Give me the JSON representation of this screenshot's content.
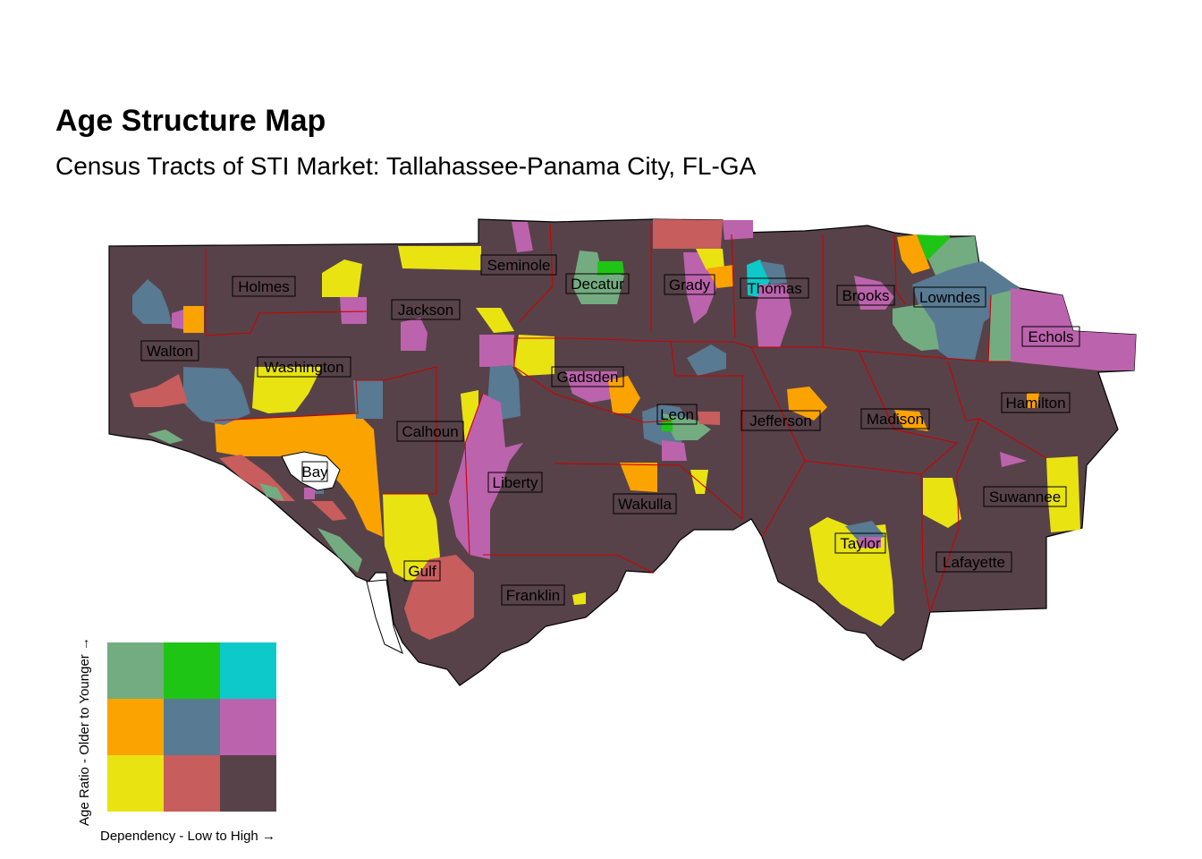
{
  "title": "Age Structure Map",
  "subtitle": "Census Tracts of STI Market: Tallahassee-Panama City, FL-GA",
  "colors": {
    "base": "#574249",
    "border_county": "#cc0000",
    "outline": "#000000"
  },
  "counties": [
    "Holmes",
    "Seminole",
    "Decatur",
    "Grady",
    "Thomas",
    "Brooks",
    "Lowndes",
    "Jackson",
    "Echols",
    "Walton",
    "Washington",
    "Gadsden",
    "Hamilton",
    "Leon",
    "Calhoun",
    "Jefferson",
    "Madison",
    "Bay",
    "Liberty",
    "Suwannee",
    "Wakulla",
    "Taylor",
    "Gulf",
    "Lafayette",
    "Franklin"
  ],
  "legend": {
    "x_label": "Dependency - Low to High →",
    "y_label": "Age Ratio - Older to Younger →",
    "grid": [
      [
        "#73ac80",
        "#1fc514",
        "#0ec9c9"
      ],
      [
        "#fba300",
        "#587a92",
        "#bc63ad"
      ],
      [
        "#e9e312",
        "#c75d5c",
        "#574249"
      ]
    ]
  }
}
